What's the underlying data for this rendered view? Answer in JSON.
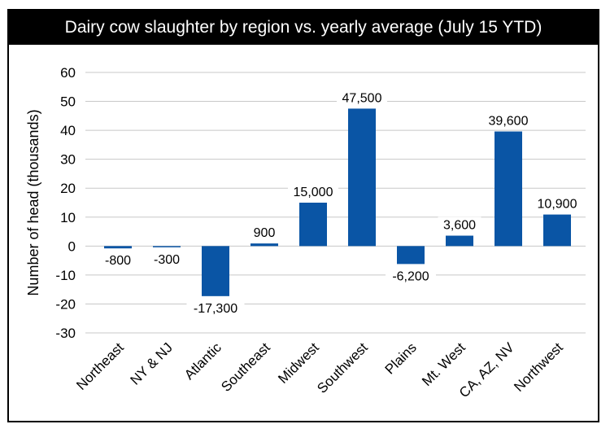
{
  "chart_data": {
    "type": "bar",
    "title": "Dairy cow slaughter by region vs. yearly average (July 15 YTD)",
    "ylabel": "Number of head (thousands)",
    "xlabel": "",
    "ylim": [
      -30,
      60
    ],
    "yticks": [
      60,
      50,
      40,
      30,
      20,
      10,
      0,
      -10,
      -20,
      -30
    ],
    "grid": true,
    "categories": [
      "Northeast",
      "NY & NJ",
      "Atlantic",
      "Southeast",
      "Midwest",
      "Southwest",
      "Plains",
      "Mt. West",
      "CA, AZ, NV",
      "Northwest"
    ],
    "values": [
      -0.8,
      -0.3,
      -17.3,
      0.9,
      15.0,
      47.5,
      -6.2,
      3.6,
      39.6,
      10.9
    ],
    "data_labels": [
      "-800",
      "-300",
      "-17,300",
      "900",
      "15,000",
      "47,500",
      "-6,200",
      "3,600",
      "39,600",
      "10,900"
    ],
    "bar_color": "#0a55a5",
    "grid_color": "#c8c8c8"
  }
}
